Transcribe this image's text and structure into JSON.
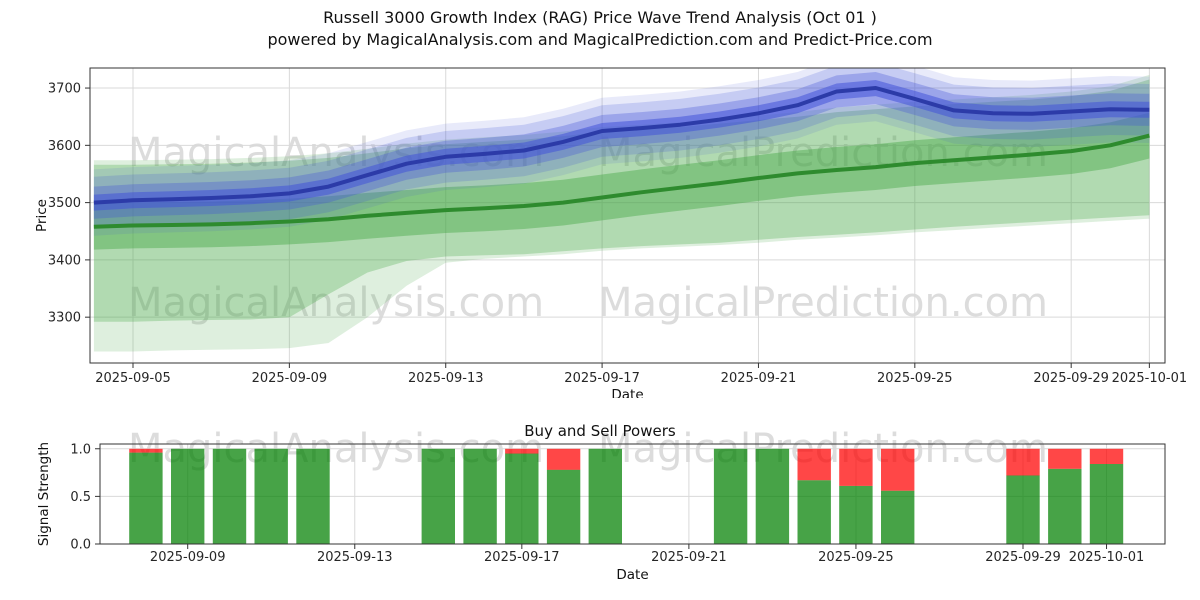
{
  "title": {
    "line1": "Russell 3000 Growth Index (RAG) Price Wave Trend Analysis (Oct 01 )",
    "line2": "powered by MagicalAnalysis.com and MagicalPrediction.com and Predict-Price.com"
  },
  "watermarks": {
    "analysis": "MagicalAnalysis.com",
    "prediction": "MagicalPrediction.com"
  },
  "colors": {
    "grid": "#d9d9d9",
    "spine": "#333333",
    "green_band": "#4aa84a",
    "green_line": "#2e8b2e",
    "blue_band": "#4353d8",
    "blue_line": "#2c3ba8",
    "bar_buy": "#008000",
    "bar_sell": "#ff0000",
    "bar_alpha": 0.72
  },
  "chart_data": [
    {
      "type": "area",
      "title": "",
      "xlabel": "Date",
      "ylabel": "Price",
      "ylim": [
        3220,
        3735
      ],
      "yticks": [
        3300,
        3400,
        3500,
        3600,
        3700
      ],
      "yticklabels": [
        "3300",
        "3400",
        "3500",
        "3600",
        "3700"
      ],
      "xticks": [
        "2025-09-05",
        "2025-09-09",
        "2025-09-13",
        "2025-09-17",
        "2025-09-21",
        "2025-09-25",
        "2025-09-29",
        "2025-10-01"
      ],
      "x_base_date": "2025-09-04",
      "x_range_days": [
        -0.1,
        27.4
      ],
      "grid": true,
      "dates": [
        "2025-09-04",
        "2025-09-05",
        "2025-09-06",
        "2025-09-07",
        "2025-09-08",
        "2025-09-09",
        "2025-09-10",
        "2025-09-11",
        "2025-09-12",
        "2025-09-13",
        "2025-09-14",
        "2025-09-15",
        "2025-09-16",
        "2025-09-17",
        "2025-09-18",
        "2025-09-19",
        "2025-09-20",
        "2025-09-21",
        "2025-09-22",
        "2025-09-23",
        "2025-09-24",
        "2025-09-25",
        "2025-09-26",
        "2025-09-27",
        "2025-09-28",
        "2025-09-29",
        "2025-09-30",
        "2025-10-01"
      ],
      "lines": [
        {
          "name": "green-trend",
          "color": "#2e8b2e",
          "width": 4,
          "values": [
            3458,
            3460,
            3461,
            3462,
            3464,
            3467,
            3471,
            3477,
            3482,
            3487,
            3490,
            3494,
            3500,
            3509,
            3518,
            3526,
            3534,
            3543,
            3551,
            3557,
            3562,
            3569,
            3574,
            3579,
            3584,
            3590,
            3600,
            3617
          ]
        },
        {
          "name": "blue-trend",
          "color": "#2c3ba8",
          "width": 4,
          "values": [
            3500,
            3504,
            3506,
            3508,
            3511,
            3516,
            3528,
            3548,
            3568,
            3580,
            3585,
            3591,
            3606,
            3625,
            3630,
            3636,
            3645,
            3656,
            3670,
            3694,
            3700,
            3681,
            3661,
            3656,
            3655,
            3659,
            3663,
            3662
          ]
        }
      ],
      "bands": [
        {
          "name": "green-widest",
          "base": "green",
          "opacity": 0.18,
          "lower": [
            3240,
            3240,
            3242,
            3243,
            3244,
            3246,
            3255,
            3300,
            3355,
            3395,
            3402,
            3406,
            3410,
            3416,
            3420,
            3423,
            3426,
            3430,
            3435,
            3439,
            3443,
            3448,
            3452,
            3456,
            3460,
            3464,
            3468,
            3472
          ],
          "upper": [
            3574,
            3574,
            3575,
            3576,
            3578,
            3581,
            3586,
            3594,
            3603,
            3610,
            3614,
            3618,
            3624,
            3632,
            3636,
            3640,
            3646,
            3652,
            3658,
            3666,
            3671,
            3676,
            3680,
            3684,
            3688,
            3694,
            3703,
            3723
          ]
        },
        {
          "name": "green-wide",
          "base": "green",
          "opacity": 0.3,
          "lower": [
            3292,
            3292,
            3294,
            3295,
            3296,
            3300,
            3340,
            3378,
            3398,
            3406,
            3408,
            3410,
            3415,
            3420,
            3424,
            3427,
            3430,
            3435,
            3440,
            3444,
            3448,
            3453,
            3458,
            3462,
            3466,
            3470,
            3474,
            3478
          ],
          "upper": [
            3566,
            3566,
            3567,
            3568,
            3570,
            3573,
            3578,
            3586,
            3595,
            3602,
            3606,
            3610,
            3616,
            3624,
            3628,
            3632,
            3638,
            3644,
            3650,
            3658,
            3663,
            3668,
            3672,
            3676,
            3680,
            3686,
            3695,
            3715
          ]
        },
        {
          "name": "green-mid",
          "base": "green",
          "opacity": 0.45,
          "around": "green-trend",
          "spread": 40
        },
        {
          "name": "blue-widest",
          "base": "blue",
          "opacity": 0.12,
          "around": "blue-trend",
          "spread": 58
        },
        {
          "name": "blue-outer",
          "base": "blue",
          "opacity": 0.2,
          "around": "blue-trend",
          "spread": 45
        },
        {
          "name": "blue-mid",
          "base": "blue",
          "opacity": 0.32,
          "around": "blue-trend",
          "spread": 28
        },
        {
          "name": "blue-inner",
          "base": "blue",
          "opacity": 0.55,
          "around": "blue-trend",
          "spread": 14
        }
      ]
    },
    {
      "type": "bar",
      "title": "Buy and Sell Powers",
      "xlabel": "Date",
      "ylabel": "Signal Strength",
      "ylim": [
        0,
        1.05
      ],
      "yticks": [
        0,
        0.5,
        1
      ],
      "yticklabels": [
        "0.0",
        "0.5",
        "1.0"
      ],
      "xticks": [
        "2025-09-09",
        "2025-09-13",
        "2025-09-17",
        "2025-09-21",
        "2025-09-25",
        "2025-09-29",
        "2025-10-01"
      ],
      "x_base_date": "2025-09-04",
      "x_range_days": [
        2.9,
        28.4
      ],
      "grid": true,
      "bars": [
        {
          "date": "2025-09-08",
          "buy": 0.96,
          "sell": 0.04
        },
        {
          "date": "2025-09-09",
          "buy": 1,
          "sell": 0
        },
        {
          "date": "2025-09-10",
          "buy": 1,
          "sell": 0
        },
        {
          "date": "2025-09-11",
          "buy": 1,
          "sell": 0
        },
        {
          "date": "2025-09-12",
          "buy": 1,
          "sell": 0
        },
        {
          "date": "2025-09-15",
          "buy": 1,
          "sell": 0
        },
        {
          "date": "2025-09-16",
          "buy": 1,
          "sell": 0
        },
        {
          "date": "2025-09-17",
          "buy": 0.95,
          "sell": 0.05
        },
        {
          "date": "2025-09-18",
          "buy": 0.78,
          "sell": 0.22
        },
        {
          "date": "2025-09-19",
          "buy": 1,
          "sell": 0
        },
        {
          "date": "2025-09-22",
          "buy": 1,
          "sell": 0
        },
        {
          "date": "2025-09-23",
          "buy": 1,
          "sell": 0
        },
        {
          "date": "2025-09-24",
          "buy": 0.67,
          "sell": 0.33
        },
        {
          "date": "2025-09-25",
          "buy": 0.61,
          "sell": 0.39
        },
        {
          "date": "2025-09-26",
          "buy": 0.56,
          "sell": 0.44
        },
        {
          "date": "2025-09-29",
          "buy": 0.72,
          "sell": 0.28
        },
        {
          "date": "2025-09-30",
          "buy": 0.79,
          "sell": 0.21
        },
        {
          "date": "2025-10-01",
          "buy": 0.84,
          "sell": 0.16
        }
      ]
    }
  ]
}
